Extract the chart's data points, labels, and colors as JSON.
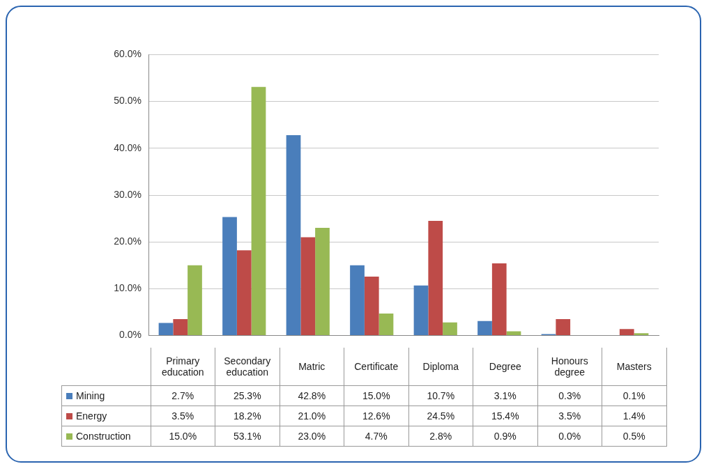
{
  "chart_data": {
    "type": "bar",
    "categories": [
      "Primary education",
      "Secondary education",
      "Matric",
      "Certificate",
      "Diploma",
      "Degree",
      "Honours degree",
      "Masters"
    ],
    "series": [
      {
        "name": "Mining",
        "color": "#4a7ebb",
        "values": [
          2.7,
          25.3,
          42.8,
          15.0,
          10.7,
          3.1,
          0.3,
          0.1
        ],
        "value_labels": [
          "2.7%",
          "25.3%",
          "42.8%",
          "15.0%",
          "10.7%",
          "3.1%",
          "0.3%",
          "0.1%"
        ]
      },
      {
        "name": "Energy",
        "color": "#be4b48",
        "values": [
          3.5,
          18.2,
          21.0,
          12.6,
          24.5,
          15.4,
          3.5,
          1.4
        ],
        "value_labels": [
          "3.5%",
          "18.2%",
          "21.0%",
          "12.6%",
          "24.5%",
          "15.4%",
          "3.5%",
          "1.4%"
        ]
      },
      {
        "name": "Construction",
        "color": "#98b954",
        "values": [
          15.0,
          53.1,
          23.0,
          4.7,
          2.8,
          0.9,
          0.0,
          0.5
        ],
        "value_labels": [
          "15.0%",
          "53.1%",
          "23.0%",
          "4.7%",
          "2.8%",
          "0.9%",
          "0.0%",
          "0.5%"
        ]
      }
    ],
    "ylim": [
      0,
      60
    ],
    "yticks": [
      {
        "value": 0,
        "label": "0.0%"
      },
      {
        "value": 10,
        "label": "10.0%"
      },
      {
        "value": 20,
        "label": "20.0%"
      },
      {
        "value": 30,
        "label": "30.0%"
      },
      {
        "value": 40,
        "label": "40.0%"
      },
      {
        "value": 50,
        "label": "50.0%"
      },
      {
        "value": 60,
        "label": "60.0%"
      }
    ],
    "grid": "y",
    "legend": "bottom"
  }
}
